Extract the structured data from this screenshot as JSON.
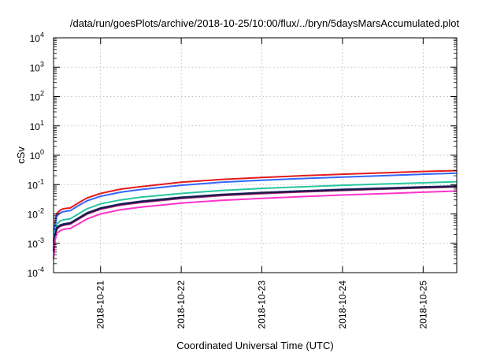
{
  "chart_data": {
    "type": "line",
    "title": "/data/run/goesPlots/archive/2018-10-25/10:00/flux/../bryn/5daysMarsAccumulated.plot",
    "xlabel": "Coordinated Universal Time (UTC)",
    "ylabel": "cSv",
    "y_scale": "log",
    "ylim": [
      0.0001,
      10000
    ],
    "xlim": [
      "2018-10-20T10:00",
      "2018-10-25T10:00"
    ],
    "grid": true,
    "legend": "none",
    "x_ticks": [
      "2018-10-21",
      "2018-10-22",
      "2018-10-23",
      "2018-10-24",
      "2018-10-25"
    ],
    "y_ticks": [
      {
        "value": 0.0001,
        "base": "10",
        "exp": "-4"
      },
      {
        "value": 0.001,
        "base": "10",
        "exp": "-3"
      },
      {
        "value": 0.01,
        "base": "10",
        "exp": "-2"
      },
      {
        "value": 0.1,
        "base": "10",
        "exp": "-1"
      },
      {
        "value": 1,
        "base": "10",
        "exp": "0"
      },
      {
        "value": 10,
        "base": "10",
        "exp": "1"
      },
      {
        "value": 100,
        "base": "10",
        "exp": "2"
      },
      {
        "value": 1000,
        "base": "10",
        "exp": "3"
      },
      {
        "value": 10000,
        "base": "10",
        "exp": "4"
      }
    ],
    "x": [
      "2018-10-20T10:00",
      "2018-10-20T10:30",
      "2018-10-20T11:00",
      "2018-10-20T12:00",
      "2018-10-20T13:00",
      "2018-10-20T14:00",
      "2018-10-20T15:00",
      "2018-10-20T18:00",
      "2018-10-20T20:00",
      "2018-10-21T00:00",
      "2018-10-21T06:00",
      "2018-10-21T12:00",
      "2018-10-22T00:00",
      "2018-10-22T12:00",
      "2018-10-23T00:00",
      "2018-10-23T12:00",
      "2018-10-24T00:00",
      "2018-10-24T12:00",
      "2018-10-25T00:00",
      "2018-10-25T10:00"
    ],
    "series": [
      {
        "color": "#e41a1c",
        "values": [
          0.0012,
          0.0055,
          0.0105,
          0.0135,
          0.015,
          0.0155,
          0.016,
          0.026,
          0.035,
          0.05,
          0.07,
          0.085,
          0.12,
          0.15,
          0.175,
          0.2,
          0.225,
          0.25,
          0.28,
          0.3
        ]
      },
      {
        "color": "#3366ff",
        "values": [
          0.001,
          0.0045,
          0.0085,
          0.011,
          0.012,
          0.0125,
          0.013,
          0.021,
          0.028,
          0.04,
          0.055,
          0.068,
          0.095,
          0.12,
          0.14,
          0.16,
          0.18,
          0.2,
          0.225,
          0.245
        ]
      },
      {
        "color": "#26c6a0",
        "values": [
          0.0007,
          0.0025,
          0.0045,
          0.0058,
          0.0063,
          0.0066,
          0.0068,
          0.011,
          0.015,
          0.022,
          0.03,
          0.037,
          0.05,
          0.063,
          0.074,
          0.084,
          0.095,
          0.105,
          0.115,
          0.125
        ]
      },
      {
        "color": "#2b3b8f",
        "values": [
          0.0006,
          0.002,
          0.0035,
          0.0042,
          0.0046,
          0.0048,
          0.005,
          0.008,
          0.011,
          0.016,
          0.022,
          0.027,
          0.037,
          0.046,
          0.054,
          0.061,
          0.069,
          0.076,
          0.084,
          0.09
        ]
      },
      {
        "color": "#aa2277",
        "values": [
          0.0005,
          0.0018,
          0.0031,
          0.0038,
          0.0041,
          0.0043,
          0.0045,
          0.0072,
          0.0099,
          0.0145,
          0.02,
          0.0245,
          0.0335,
          0.042,
          0.049,
          0.056,
          0.063,
          0.07,
          0.077,
          0.083
        ]
      },
      {
        "color": "#1a1a44",
        "values": [
          0.00055,
          0.0019,
          0.0033,
          0.004,
          0.0044,
          0.0046,
          0.0048,
          0.0077,
          0.0105,
          0.0155,
          0.0212,
          0.026,
          0.0355,
          0.0445,
          0.052,
          0.059,
          0.066,
          0.073,
          0.081,
          0.087
        ]
      },
      {
        "color": "#ff33cc",
        "values": [
          0.0003,
          0.0013,
          0.0022,
          0.0027,
          0.003,
          0.0031,
          0.0032,
          0.005,
          0.0068,
          0.01,
          0.014,
          0.017,
          0.0235,
          0.029,
          0.034,
          0.039,
          0.044,
          0.049,
          0.055,
          0.06
        ]
      }
    ]
  }
}
